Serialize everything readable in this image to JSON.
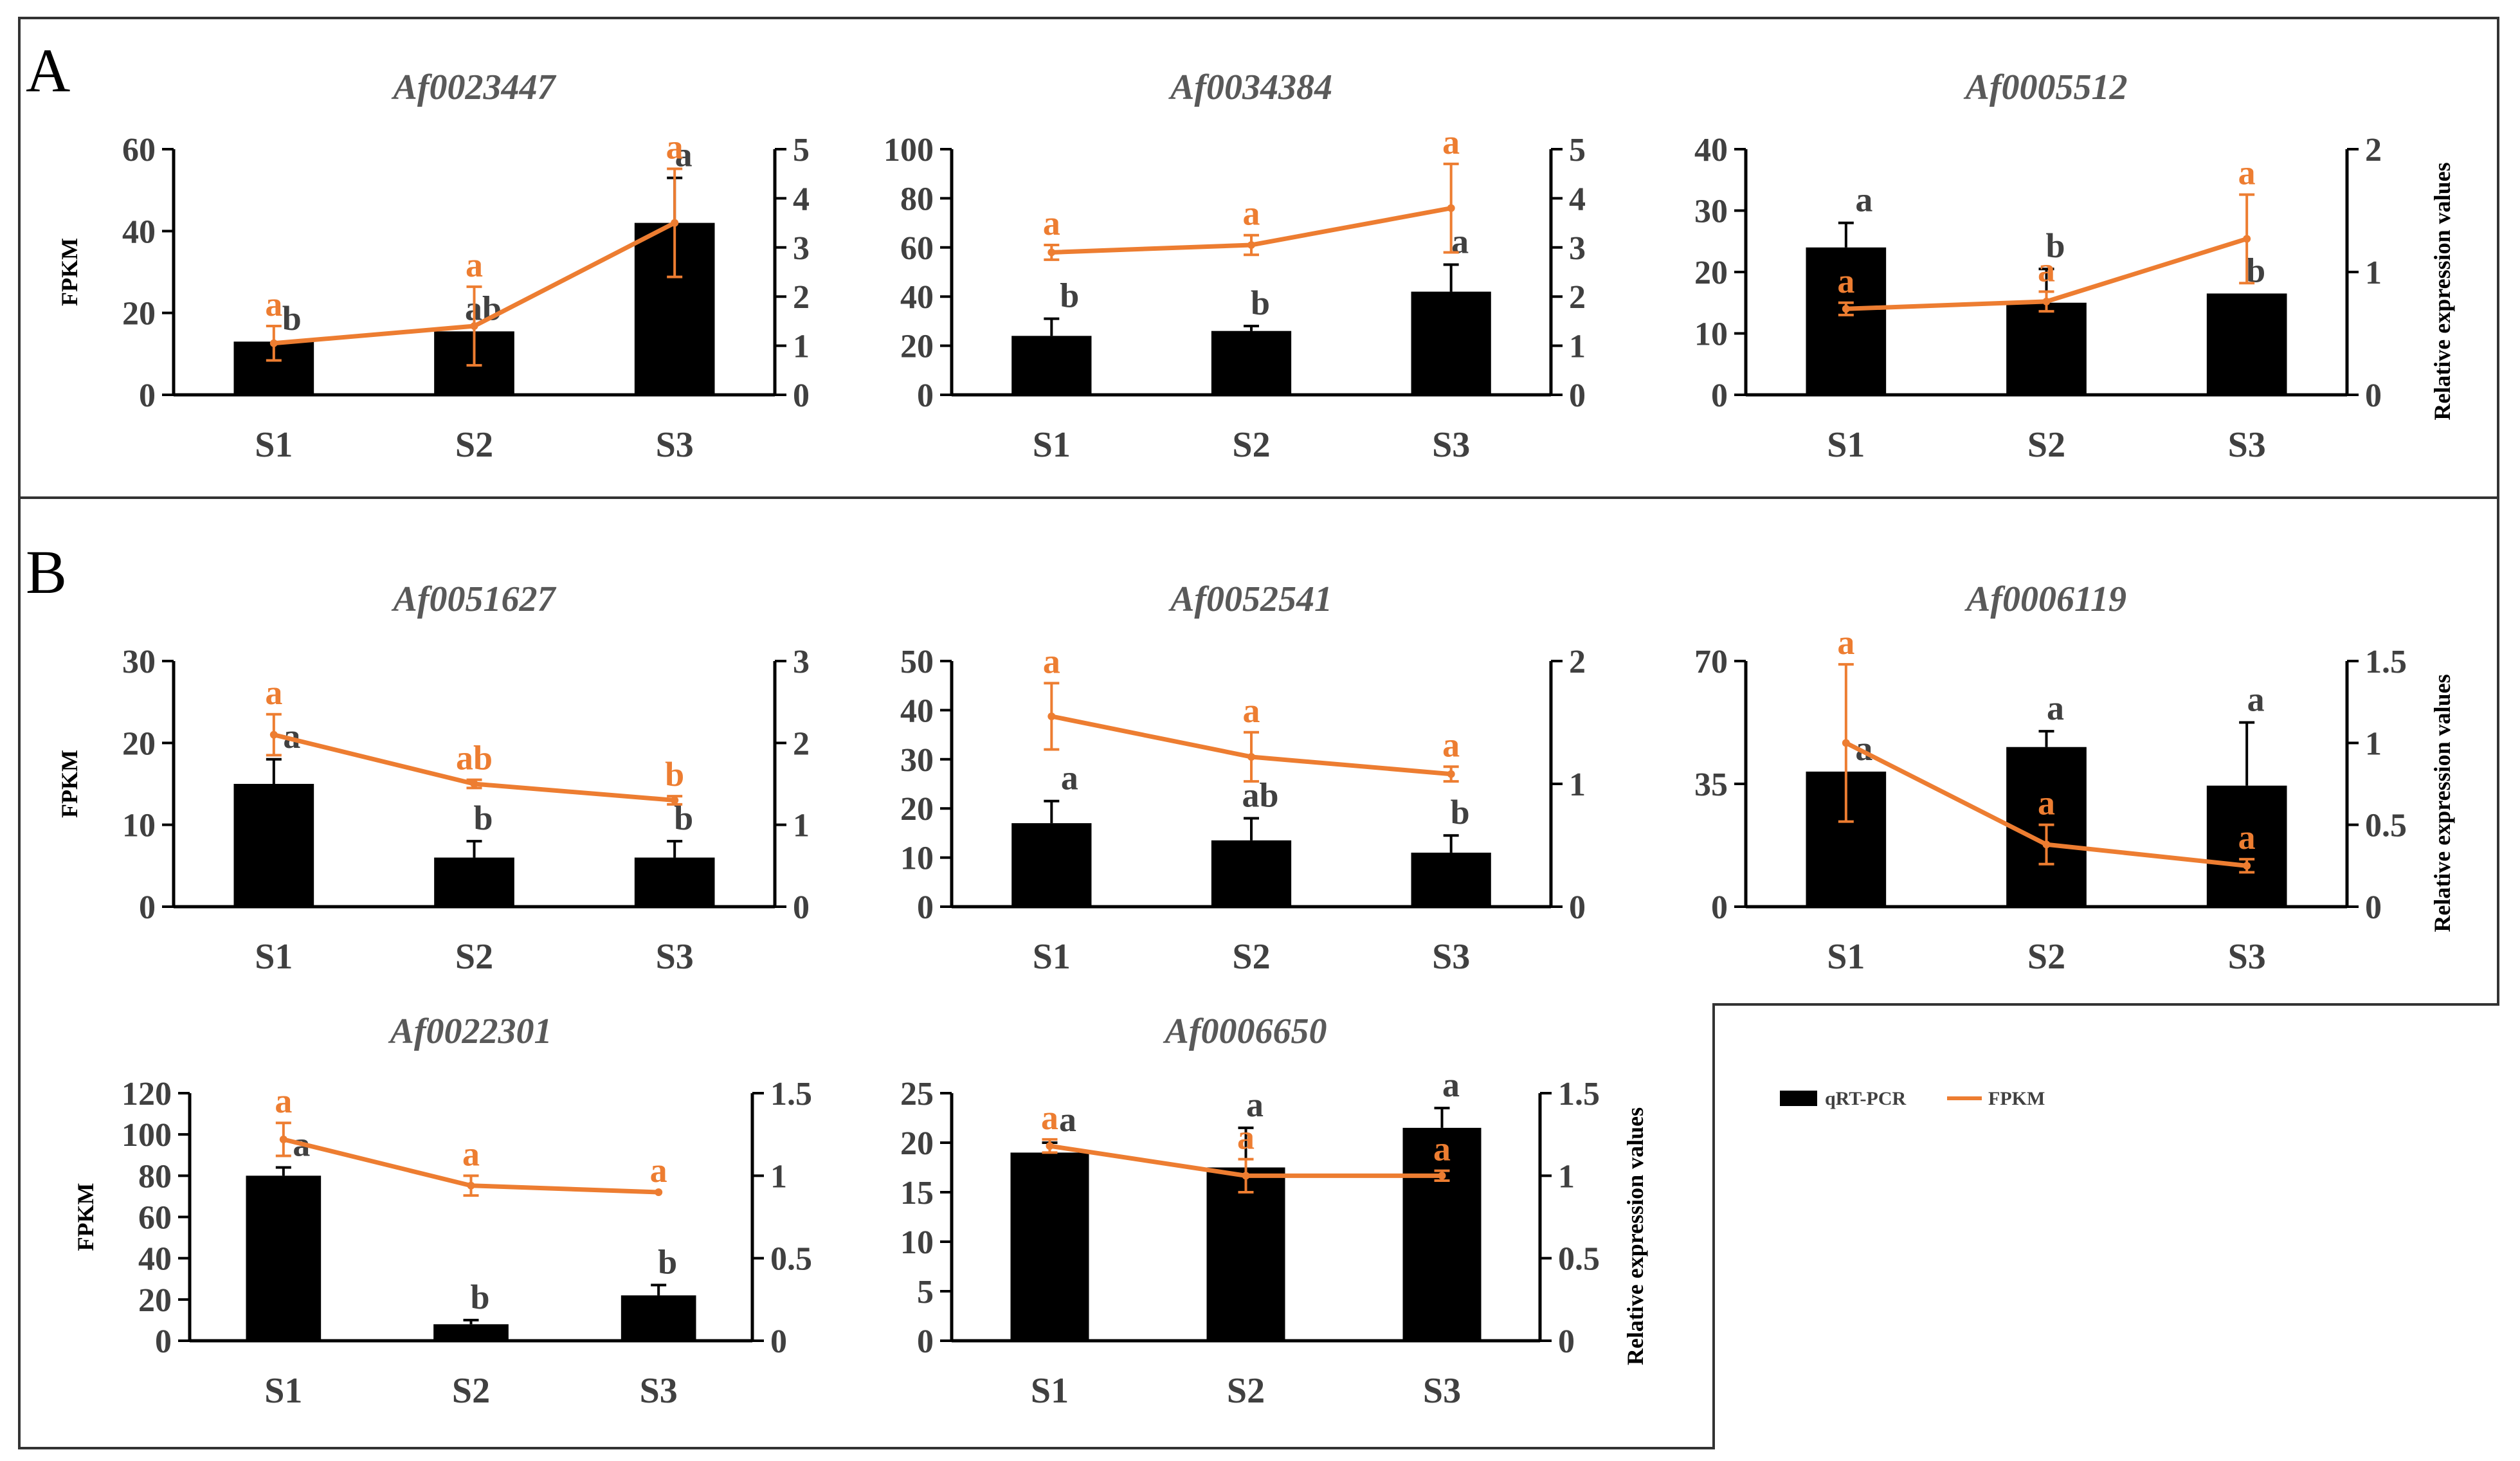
{
  "colors": {
    "bar": "#000000",
    "line": "#ed7d31",
    "text": "#404040",
    "title": "#595959"
  },
  "panels": [
    "A",
    "B"
  ],
  "legend": {
    "bar_label": "qRT-PCR",
    "line_label": "FPKM"
  },
  "chart_data": [
    {
      "type": "bar+line",
      "panel": "A",
      "title": "Af0023447",
      "categories": [
        "S1",
        "S2",
        "S3"
      ],
      "ylabel": "FPKM",
      "y2label": "",
      "ylim": [
        0,
        60
      ],
      "yticks": [
        "0",
        "20",
        "40",
        "60"
      ],
      "y2lim": [
        0,
        5
      ],
      "y2ticks": [
        "0",
        "1",
        "2",
        "3",
        "4",
        "5"
      ],
      "series": [
        {
          "name": "qRT-PCR",
          "axis": "left",
          "values": [
            13,
            15.5,
            42
          ],
          "errors": [
            0,
            0,
            11
          ],
          "letters": [
            "b",
            "ab",
            "a"
          ]
        },
        {
          "name": "FPKM",
          "axis": "right",
          "values": [
            1.05,
            1.4,
            3.5
          ],
          "errors": [
            0.35,
            0.8,
            1.1
          ],
          "letters": [
            "a",
            "a",
            "a"
          ]
        }
      ]
    },
    {
      "type": "bar+line",
      "panel": "A",
      "title": "Af0034384",
      "categories": [
        "S1",
        "S2",
        "S3"
      ],
      "ylabel": "",
      "y2label": "",
      "ylim": [
        0,
        100
      ],
      "yticks": [
        "0",
        "20",
        "40",
        "60",
        "80",
        "100"
      ],
      "y2lim": [
        0,
        5
      ],
      "y2ticks": [
        "0",
        "1",
        "2",
        "3",
        "4",
        "5"
      ],
      "series": [
        {
          "name": "qRT-PCR",
          "axis": "left",
          "values": [
            24,
            26,
            42
          ],
          "errors": [
            7,
            2,
            11
          ],
          "letters": [
            "b",
            "b",
            "a"
          ]
        },
        {
          "name": "FPKM",
          "axis": "right",
          "values": [
            2.9,
            3.05,
            3.8
          ],
          "errors": [
            0.15,
            0.2,
            0.9
          ],
          "letters": [
            "a",
            "a",
            "a"
          ]
        }
      ]
    },
    {
      "type": "bar+line",
      "panel": "A",
      "title": "Af0005512",
      "categories": [
        "S1",
        "S2",
        "S3"
      ],
      "ylabel": "",
      "y2label": "Relative expression values",
      "ylim": [
        0,
        40
      ],
      "yticks": [
        "0",
        "10",
        "20",
        "30",
        "40"
      ],
      "y2lim": [
        0,
        2
      ],
      "y2ticks": [
        "0",
        "1",
        "2"
      ],
      "series": [
        {
          "name": "qRT-PCR",
          "axis": "left",
          "values": [
            24,
            15,
            16.5
          ],
          "errors": [
            4,
            5.5,
            0
          ],
          "letters": [
            "a",
            "b",
            "b"
          ]
        },
        {
          "name": "FPKM",
          "axis": "right",
          "values": [
            0.7,
            0.76,
            1.27
          ],
          "errors": [
            0.05,
            0.08,
            0.36
          ],
          "letters": [
            "a",
            "a",
            "a"
          ]
        }
      ]
    },
    {
      "type": "bar+line",
      "panel": "B",
      "title": "Af0051627",
      "categories": [
        "S1",
        "S2",
        "S3"
      ],
      "ylabel": "FPKM",
      "y2label": "",
      "ylim": [
        0,
        30
      ],
      "yticks": [
        "0",
        "10",
        "20",
        "30"
      ],
      "y2lim": [
        0,
        3
      ],
      "y2ticks": [
        "0",
        "1",
        "2",
        "3"
      ],
      "series": [
        {
          "name": "qRT-PCR",
          "axis": "left",
          "values": [
            15,
            6,
            6
          ],
          "errors": [
            3,
            2,
            2
          ],
          "letters": [
            "a",
            "b",
            "b"
          ]
        },
        {
          "name": "FPKM",
          "axis": "right",
          "values": [
            2.1,
            1.5,
            1.3
          ],
          "errors": [
            0.25,
            0.05,
            0.05
          ],
          "letters": [
            "a",
            "ab",
            "b"
          ]
        }
      ]
    },
    {
      "type": "bar+line",
      "panel": "B",
      "title": "Af0052541",
      "categories": [
        "S1",
        "S2",
        "S3"
      ],
      "ylabel": "",
      "y2label": "",
      "ylim": [
        0,
        50
      ],
      "yticks": [
        "0",
        "10",
        "20",
        "30",
        "40",
        "50"
      ],
      "y2lim": [
        0,
        2
      ],
      "y2ticks": [
        "0",
        "1",
        "2"
      ],
      "series": [
        {
          "name": "qRT-PCR",
          "axis": "left",
          "values": [
            17,
            13.5,
            11
          ],
          "errors": [
            4.5,
            4.5,
            3.5
          ],
          "letters": [
            "a",
            "ab",
            "b"
          ]
        },
        {
          "name": "FPKM",
          "axis": "right",
          "values": [
            1.55,
            1.22,
            1.08
          ],
          "errors": [
            0.27,
            0.2,
            0.06
          ],
          "letters": [
            "a",
            "a",
            "a"
          ]
        }
      ]
    },
    {
      "type": "bar+line",
      "panel": "B",
      "title": "Af0006119",
      "categories": [
        "S1",
        "S2",
        "S3"
      ],
      "ylabel": "",
      "y2label": "Relative expression values",
      "ylim": [
        0,
        70
      ],
      "yticks": [
        "0",
        "35",
        "70"
      ],
      "y2lim": [
        0,
        1.5
      ],
      "y2ticks": [
        "0",
        "0.5",
        "1",
        "1.5"
      ],
      "series": [
        {
          "name": "qRT-PCR",
          "axis": "left",
          "values": [
            38.5,
            45.5,
            34.5
          ],
          "errors": [
            0,
            4.5,
            18
          ],
          "letters": [
            "a",
            "a",
            "a"
          ]
        },
        {
          "name": "FPKM",
          "axis": "right",
          "values": [
            1.0,
            0.38,
            0.25
          ],
          "errors": [
            0.48,
            0.12,
            0.04
          ],
          "letters": [
            "a",
            "a",
            "a"
          ]
        }
      ]
    },
    {
      "type": "bar+line",
      "panel": "B",
      "title": "Af0022301",
      "categories": [
        "S1",
        "S2",
        "S3"
      ],
      "ylabel": "FPKM",
      "y2label": "",
      "ylim": [
        0,
        120
      ],
      "yticks": [
        "0",
        "20",
        "40",
        "60",
        "80",
        "100",
        "120"
      ],
      "y2lim": [
        0,
        1.5
      ],
      "y2ticks": [
        "0",
        "0.5",
        "1",
        "1.5"
      ],
      "series": [
        {
          "name": "qRT-PCR",
          "axis": "left",
          "values": [
            80,
            8,
            22
          ],
          "errors": [
            4,
            2,
            5
          ],
          "letters": [
            "a",
            "b",
            "b"
          ]
        },
        {
          "name": "FPKM",
          "axis": "right",
          "values": [
            1.22,
            0.94,
            0.9
          ],
          "errors": [
            0.1,
            0.06,
            0
          ],
          "letters": [
            "a",
            "a",
            "a"
          ]
        }
      ]
    },
    {
      "type": "bar+line",
      "panel": "B",
      "title": "Af0006650",
      "categories": [
        "S1",
        "S2",
        "S3"
      ],
      "ylabel": "",
      "y2label": "Relative expression values",
      "ylim": [
        0,
        25
      ],
      "yticks": [
        "0",
        "5",
        "10",
        "15",
        "20",
        "25"
      ],
      "y2lim": [
        0,
        1.5
      ],
      "y2ticks": [
        "0",
        "0.5",
        "1",
        "1.5"
      ],
      "series": [
        {
          "name": "qRT-PCR",
          "axis": "left",
          "values": [
            19,
            17.5,
            21.5
          ],
          "errors": [
            1,
            4,
            2
          ],
          "letters": [
            "a",
            "a",
            "a"
          ]
        },
        {
          "name": "FPKM",
          "axis": "right",
          "values": [
            1.18,
            1.0,
            1.0
          ],
          "errors": [
            0.04,
            0.1,
            0.03
          ],
          "letters": [
            "a",
            "a",
            "a"
          ]
        }
      ]
    }
  ]
}
